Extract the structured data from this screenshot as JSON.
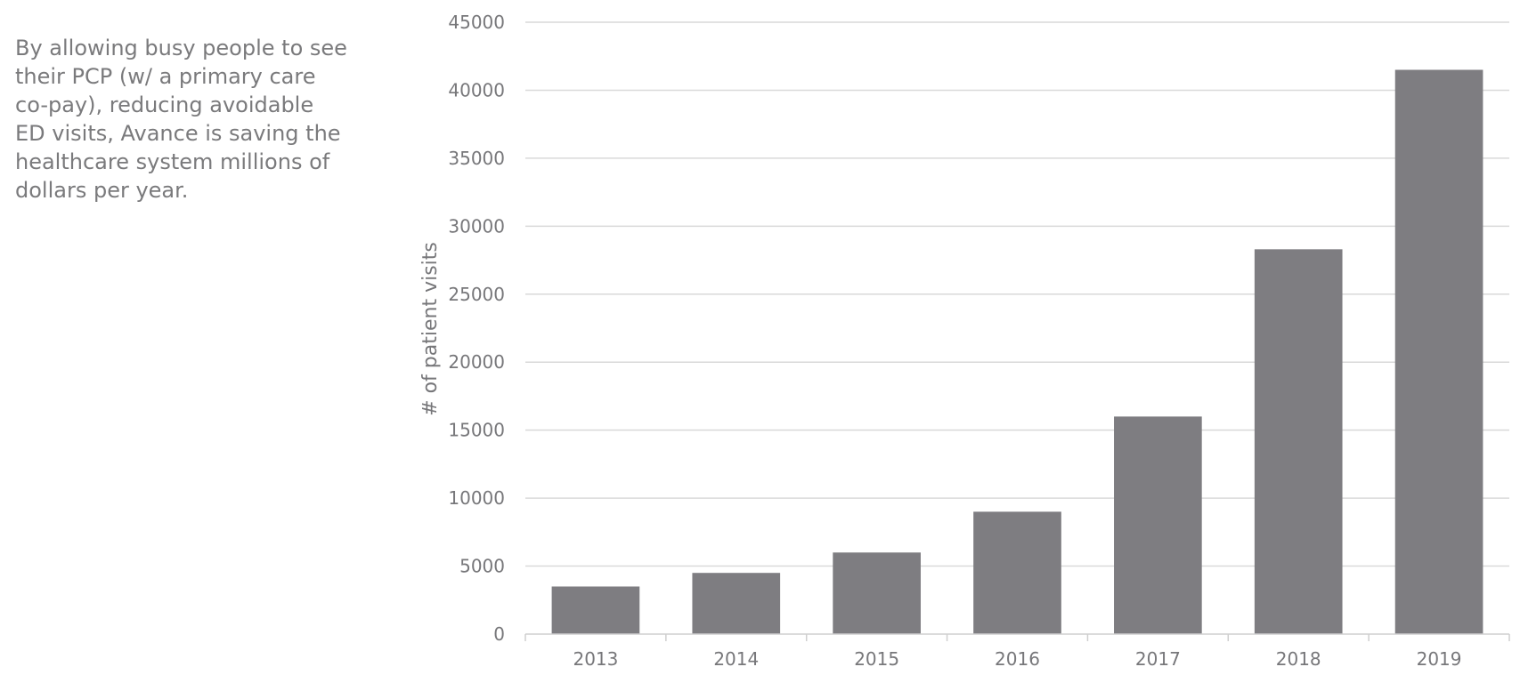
{
  "side_text": {
    "lines": [
      "By allowing busy people to see",
      "their PCP (w/ a primary care",
      "co-pay), reducing avoidable",
      "ED visits, Avance is saving the",
      "healthcare system millions of",
      "dollars per year."
    ]
  },
  "chart_data": {
    "type": "bar",
    "categories": [
      "2013",
      "2014",
      "2015",
      "2016",
      "2017",
      "2018",
      "2019"
    ],
    "values": [
      3500,
      4500,
      6000,
      9000,
      16000,
      28300,
      41500
    ],
    "ylabel": "# of patient visits",
    "xlabel": "",
    "ylim": [
      0,
      45000
    ],
    "yticks": [
      0,
      5000,
      10000,
      15000,
      20000,
      25000,
      30000,
      35000,
      40000,
      45000
    ],
    "grid": true,
    "bar_color": "#7e7d81",
    "grid_color": "#d9d9d9",
    "text_color": "#77777a"
  }
}
